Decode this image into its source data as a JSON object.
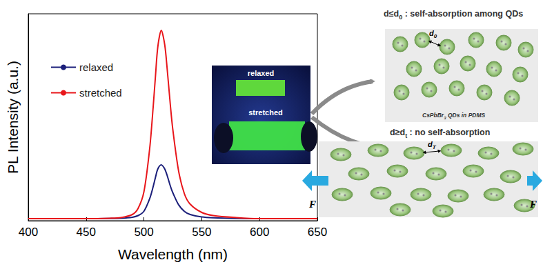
{
  "chart_data": {
    "type": "line",
    "x_label": "Wavelength (nm)",
    "y_label": "PL Intensity (a.u.)",
    "x": [
      400,
      450,
      470,
      480,
      490,
      495,
      500,
      505,
      508,
      510,
      512,
      515,
      518,
      520,
      523,
      525,
      530,
      535,
      540,
      550,
      560,
      580,
      600,
      650
    ],
    "series": [
      {
        "name": "relaxed",
        "color": "#1b1f7a",
        "values": [
          0.01,
          0.01,
          0.011,
          0.012,
          0.017,
          0.025,
          0.046,
          0.107,
          0.165,
          0.21,
          0.25,
          0.27,
          0.25,
          0.22,
          0.165,
          0.135,
          0.077,
          0.045,
          0.03,
          0.018,
          0.014,
          0.011,
          0.01,
          0.01
        ]
      },
      {
        "name": "stretched",
        "color": "#e8161b",
        "values": [
          0.01,
          0.01,
          0.012,
          0.015,
          0.03,
          0.06,
          0.14,
          0.35,
          0.55,
          0.7,
          0.84,
          0.92,
          0.85,
          0.74,
          0.55,
          0.44,
          0.24,
          0.13,
          0.08,
          0.04,
          0.025,
          0.015,
          0.01,
          0.01
        ]
      }
    ],
    "xlim": [
      400,
      650
    ],
    "xticks": [
      400,
      450,
      500,
      550,
      600,
      650
    ],
    "ylim": [
      0,
      1
    ],
    "tick_labels": "x",
    "grid": false,
    "legend": "upper left"
  },
  "inset_photo": {
    "labels": [
      "relaxed",
      "stretched"
    ]
  },
  "diagram": {
    "panels": [
      {
        "title": [
          {
            "text": "d≤d"
          },
          {
            "sub": "0"
          },
          {
            "text": " : self-absorption among QDs"
          }
        ],
        "spacing_label": [
          {
            "text": "d"
          },
          {
            "sub": "0"
          }
        ],
        "caption": [
          {
            "text": "CsPbBr"
          },
          {
            "sub": "3"
          },
          {
            "text": " QDs in PDMS"
          }
        ]
      },
      {
        "title": [
          {
            "text": "d≥d"
          },
          {
            "sub": "t"
          },
          {
            "text": " : no self-absorption"
          }
        ],
        "spacing_label": [
          {
            "text": "d"
          },
          {
            "sub": "T"
          }
        ]
      }
    ],
    "force_labels": [
      "F",
      "F"
    ]
  }
}
